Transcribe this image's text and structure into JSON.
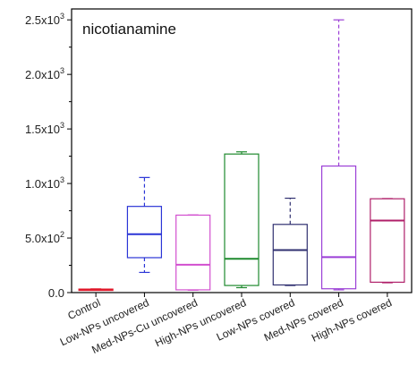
{
  "chart_data": {
    "type": "box",
    "title": "nicotianamine",
    "xlabel": "",
    "ylabel": "",
    "ylim": [
      0,
      2600
    ],
    "y_ticks": [
      {
        "value": 0,
        "label": "0.0"
      },
      {
        "value": 500,
        "label": "5.0x10",
        "exp": "2"
      },
      {
        "value": 1000,
        "label": "1.0x10",
        "exp": "3"
      },
      {
        "value": 1500,
        "label": "1.5x10",
        "exp": "3"
      },
      {
        "value": 2000,
        "label": "2.0x10",
        "exp": "3"
      },
      {
        "value": 2500,
        "label": "2.5x10",
        "exp": "3"
      }
    ],
    "categories": [
      "Control",
      "Low-NPs uncovered",
      "Med-NPs-Cu uncovered",
      "High-NPs uncovered",
      "Low-NPs covered",
      "Med-NPs covered",
      "High-NPs covered"
    ],
    "boxes": [
      {
        "category": "Control",
        "min": 22,
        "q1": 25,
        "median": 28,
        "q3": 32,
        "max": 34,
        "color": "#e0192b"
      },
      {
        "category": "Low-NPs uncovered",
        "min": 185,
        "q1": 320,
        "median": 535,
        "q3": 790,
        "max": 1055,
        "color": "#2b35d6"
      },
      {
        "category": "Med-NPs-Cu uncovered",
        "min": 22,
        "q1": 25,
        "median": 255,
        "q3": 710,
        "max": 712,
        "color": "#d24fcf"
      },
      {
        "category": "High-NPs uncovered",
        "min": 45,
        "q1": 65,
        "median": 310,
        "q3": 1270,
        "max": 1290,
        "color": "#1f8a2e"
      },
      {
        "category": "Low-NPs covered",
        "min": 65,
        "q1": 70,
        "median": 390,
        "q3": 625,
        "max": 865,
        "color": "#303070"
      },
      {
        "category": "Med-NPs covered",
        "min": 25,
        "q1": 35,
        "median": 325,
        "q3": 1160,
        "max": 2500,
        "color": "#9b3fd6"
      },
      {
        "category": "High-NPs covered",
        "min": 90,
        "q1": 95,
        "median": 660,
        "q3": 860,
        "max": 862,
        "color": "#b0206a"
      }
    ],
    "grid": false,
    "legend": "none"
  }
}
